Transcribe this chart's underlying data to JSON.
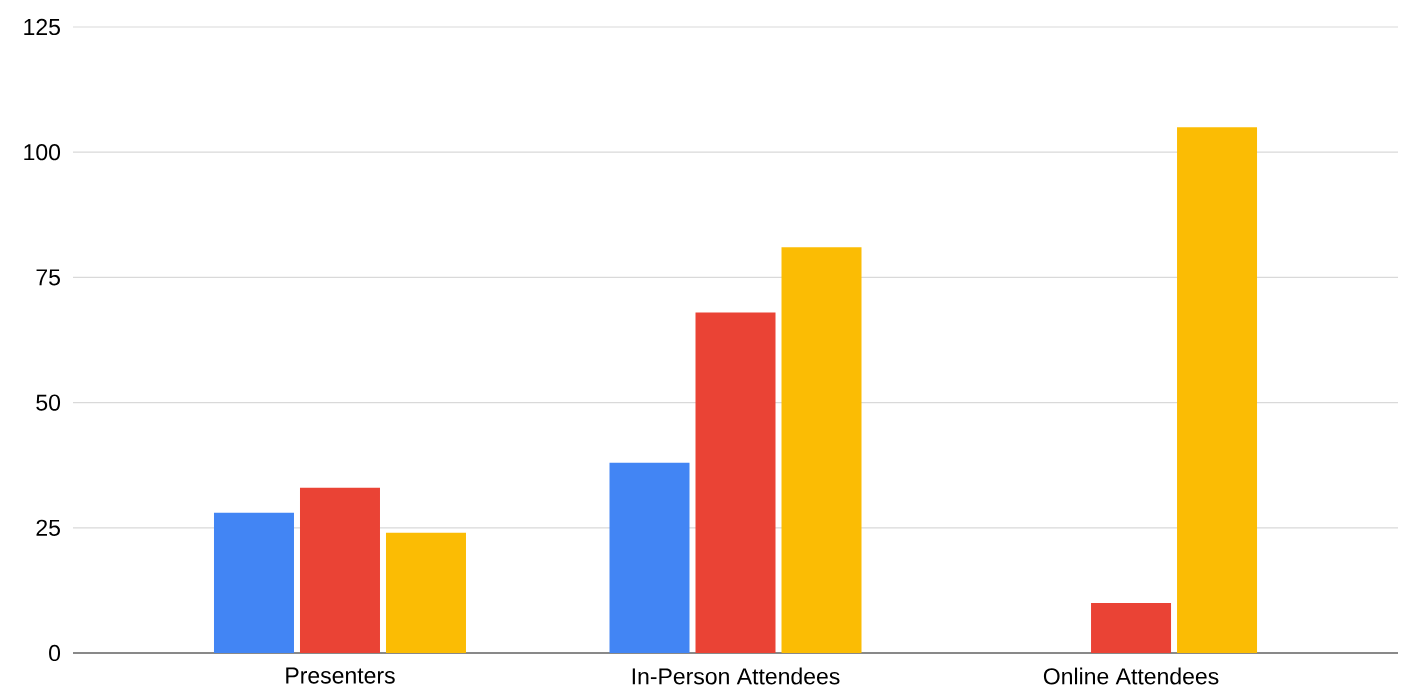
{
  "chart_data": {
    "type": "bar",
    "categories": [
      "Presenters",
      "In-Person Attendees",
      "Online Attendees"
    ],
    "series": [
      {
        "color": "#4285f4",
        "values": [
          28,
          38,
          null
        ]
      },
      {
        "color": "#ea4335",
        "values": [
          33,
          68,
          10
        ]
      },
      {
        "color": "#fbbc04",
        "values": [
          24,
          81,
          105
        ]
      }
    ],
    "ylim": [
      0,
      125
    ],
    "yticks": [
      0,
      25,
      50,
      75,
      100,
      125
    ],
    "grid": "y"
  }
}
